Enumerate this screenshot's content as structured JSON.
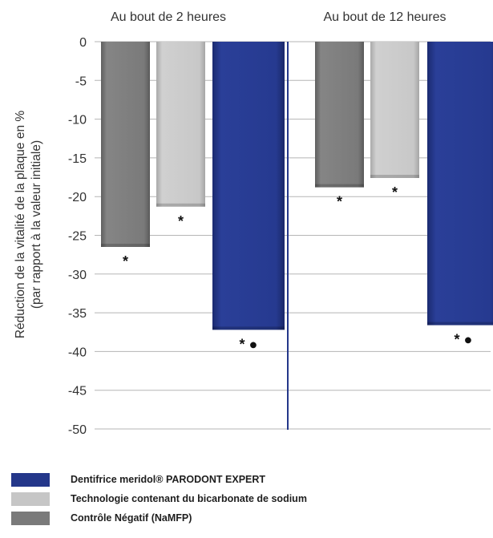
{
  "chart_data": {
    "type": "bar",
    "ylabel_lines": [
      "Réduction de la vitalité de la plaque en %",
      "(par rapport à la valeur initiale)"
    ],
    "ylim": [
      -50,
      0
    ],
    "yticks": [
      0,
      -5,
      -10,
      -15,
      -20,
      -25,
      -30,
      -35,
      -40,
      -45,
      -50
    ],
    "grid": true,
    "groups": [
      {
        "label": "Au bout de 2 heures",
        "values": [
          -26.5,
          -21.3,
          -37.2
        ],
        "markers": [
          "*",
          "*",
          "* ●"
        ]
      },
      {
        "label": "Au bout de 12 heures",
        "values": [
          -18.8,
          -17.6,
          -36.6
        ],
        "markers": [
          "*",
          "*",
          "* ●"
        ]
      }
    ],
    "series": [
      {
        "name": "Contrôle Négatif (NaMFP)",
        "color": "#7a7a7a"
      },
      {
        "name": "Technologie contenant du bicarbonate de sodium",
        "color": "#c6c6c6"
      },
      {
        "name": "Dentifrice meridol® PARODONT EXPERT",
        "color": "#24378a"
      }
    ],
    "legend": {
      "placement": "bottom",
      "order": [
        2,
        1,
        0
      ]
    }
  }
}
